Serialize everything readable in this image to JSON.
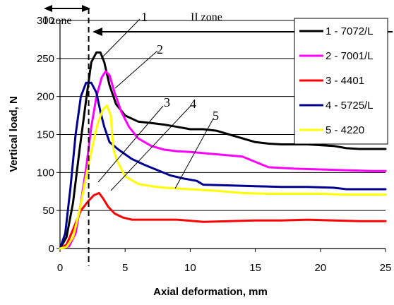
{
  "chart_data": {
    "type": "line",
    "title": "",
    "xlabel": "Axial deformation, mm",
    "ylabel": "Vertical load, N",
    "xlim": [
      0,
      25
    ],
    "ylim": [
      0,
      300
    ],
    "xticks": [
      "0",
      "5",
      "10",
      "15",
      "20",
      "25"
    ],
    "yticks": [
      "0",
      "50",
      "100",
      "150",
      "200",
      "250",
      "300"
    ],
    "grid": "horizontal",
    "legend_position": "top-right",
    "zones": {
      "zone1": "I zone",
      "zone2": "II zone",
      "boundary_x": 2.2
    },
    "series": [
      {
        "name": "1 - 7072/L",
        "callout": "1",
        "color": "#000000",
        "x": [
          0,
          0.5,
          1,
          1.5,
          2,
          2.4,
          2.8,
          3.1,
          3.4,
          3.8,
          4.3,
          5,
          6,
          7,
          8,
          9,
          10,
          11,
          12,
          13,
          14,
          15,
          16,
          17,
          18,
          19,
          20,
          21,
          22,
          23,
          24,
          25
        ],
        "y": [
          0,
          15,
          60,
          130,
          195,
          245,
          258,
          258,
          245,
          215,
          190,
          175,
          167,
          165,
          163,
          160,
          157,
          157,
          155,
          150,
          145,
          140,
          138,
          137,
          137,
          137,
          136,
          135,
          132,
          131,
          131,
          131
        ]
      },
      {
        "name": "2 - 7001/L",
        "callout": "2",
        "color": "#ff00ff",
        "x": [
          0,
          0.7,
          1.2,
          1.6,
          2,
          2.4,
          2.8,
          3.2,
          3.5,
          3.8,
          4.2,
          4.7,
          5.3,
          6,
          7,
          8,
          9,
          10,
          12,
          14,
          15,
          16,
          18,
          20,
          22,
          24,
          25
        ],
        "y": [
          0,
          3,
          20,
          60,
          105,
          160,
          200,
          225,
          233,
          228,
          205,
          180,
          160,
          145,
          135,
          130,
          128,
          127,
          124,
          121,
          114,
          107,
          105,
          104,
          103,
          102,
          102
        ]
      },
      {
        "name": "3 - 4401",
        "callout": "3",
        "color": "#ff0000",
        "x": [
          0,
          0.5,
          1,
          1.6,
          2.2,
          2.6,
          3,
          3.3,
          3.7,
          4.2,
          4.8,
          5.5,
          7,
          9,
          11,
          13,
          15,
          17,
          19,
          21,
          23,
          25
        ],
        "y": [
          0,
          5,
          25,
          50,
          63,
          70,
          73,
          66,
          55,
          46,
          41,
          38,
          38,
          38,
          35,
          36,
          37,
          37,
          38,
          37,
          36,
          36
        ]
      },
      {
        "name": "4 - 5725/L",
        "callout": "4",
        "color": "#000090",
        "x": [
          0,
          0.4,
          0.8,
          1.2,
          1.6,
          2,
          2.4,
          2.8,
          3.1,
          3.4,
          3.8,
          4.5,
          5.5,
          6.5,
          7.5,
          8.5,
          9.5,
          10.5,
          11,
          13,
          15,
          17,
          19,
          21,
          22,
          24,
          25
        ],
        "y": [
          0,
          20,
          80,
          150,
          200,
          218,
          218,
          205,
          180,
          160,
          140,
          130,
          118,
          110,
          103,
          96,
          92,
          89,
          84,
          83,
          82,
          81,
          81,
          80,
          78,
          78,
          78
        ]
      },
      {
        "name": "5 - 4220",
        "callout": "5",
        "color": "#ffff00",
        "x": [
          0,
          0.5,
          1,
          1.5,
          2,
          2.5,
          2.9,
          3.3,
          3.6,
          3.9,
          4.1,
          4.4,
          5,
          6,
          7,
          8,
          10,
          12,
          14,
          16,
          18,
          20,
          22,
          24,
          25
        ],
        "y": [
          0,
          2,
          15,
          50,
          95,
          135,
          165,
          183,
          188,
          175,
          130,
          115,
          95,
          85,
          82,
          80,
          78,
          76,
          73,
          72,
          72,
          72,
          71,
          71,
          71
        ]
      }
    ]
  }
}
